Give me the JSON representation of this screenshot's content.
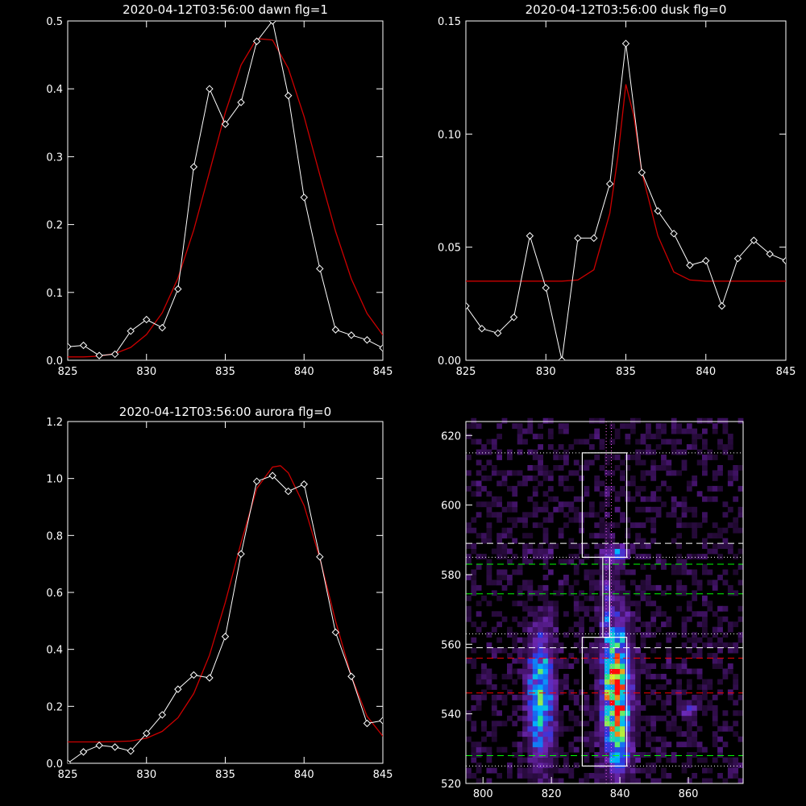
{
  "chart_data": [
    {
      "type": "line",
      "title": "2020-04-12T03:56:00 dawn flg=1",
      "xlim": [
        825,
        845
      ],
      "ylim": [
        0,
        0.5
      ],
      "xticks": [
        825,
        830,
        835,
        840,
        845
      ],
      "yticks": [
        0.0,
        0.1,
        0.2,
        0.3,
        0.4,
        0.5
      ],
      "ytick_labels": [
        "0.0",
        "0.1",
        "0.2",
        "0.3",
        "0.4",
        "0.5"
      ],
      "colors": {
        "data": "#ffffff",
        "fit": "#cc0000"
      },
      "data": {
        "x": [
          825,
          826,
          827,
          828,
          829,
          830,
          831,
          832,
          833,
          834,
          835,
          836,
          837,
          838,
          839,
          840,
          841,
          842,
          843,
          844,
          845
        ],
        "y": [
          0.02,
          0.022,
          0.007,
          0.009,
          0.043,
          0.06,
          0.048,
          0.105,
          0.285,
          0.4,
          0.348,
          0.38,
          0.47,
          0.5,
          0.39,
          0.24,
          0.135,
          0.045,
          0.037,
          0.03,
          0.018
        ]
      },
      "fit": {
        "x": [
          825,
          826,
          827,
          828,
          829,
          830,
          831,
          832,
          833,
          834,
          835,
          836,
          837,
          838,
          839,
          840,
          841,
          842,
          843,
          844,
          845
        ],
        "y": [
          0.005,
          0.005,
          0.006,
          0.01,
          0.019,
          0.038,
          0.07,
          0.121,
          0.192,
          0.278,
          0.365,
          0.435,
          0.474,
          0.472,
          0.43,
          0.359,
          0.273,
          0.19,
          0.12,
          0.069,
          0.037
        ]
      }
    },
    {
      "type": "line",
      "title": "2020-04-12T03:56:00 dusk flg=0",
      "xlim": [
        825,
        845
      ],
      "ylim": [
        0,
        0.15
      ],
      "xticks": [
        825,
        830,
        835,
        840,
        845
      ],
      "yticks": [
        0.0,
        0.05,
        0.1,
        0.15
      ],
      "ytick_labels": [
        "0.00",
        "0.05",
        "0.10",
        "0.15"
      ],
      "colors": {
        "data": "#ffffff",
        "fit": "#cc0000"
      },
      "data": {
        "x": [
          825,
          826,
          827,
          828,
          829,
          830,
          831,
          832,
          833,
          834,
          835,
          836,
          837,
          838,
          839,
          840,
          841,
          842,
          843,
          844,
          845
        ],
        "y": [
          0.024,
          0.014,
          0.012,
          0.019,
          0.055,
          0.032,
          0.0,
          0.054,
          0.054,
          0.078,
          0.14,
          0.083,
          0.066,
          0.056,
          0.042,
          0.044,
          0.024,
          0.045,
          0.053,
          0.047,
          0.044
        ]
      },
      "fit": {
        "x": [
          825,
          826,
          827,
          828,
          829,
          830,
          831,
          832,
          833,
          834,
          834.5,
          835,
          835.5,
          836,
          837,
          838,
          839,
          840,
          841,
          842,
          843,
          844,
          845
        ],
        "y": [
          0.035,
          0.035,
          0.035,
          0.035,
          0.035,
          0.035,
          0.035,
          0.0355,
          0.04,
          0.065,
          0.09,
          0.122,
          0.108,
          0.083,
          0.055,
          0.039,
          0.0355,
          0.035,
          0.035,
          0.035,
          0.035,
          0.035,
          0.035
        ]
      }
    },
    {
      "type": "line",
      "title": "2020-04-12T03:56:00 aurora flg=0",
      "xlim": [
        825,
        845
      ],
      "ylim": [
        0,
        1.2
      ],
      "xticks": [
        825,
        830,
        835,
        840,
        845
      ],
      "yticks": [
        0.0,
        0.2,
        0.4,
        0.6,
        0.8,
        1.0,
        1.2
      ],
      "ytick_labels": [
        "0.0",
        "0.2",
        "0.4",
        "0.6",
        "0.8",
        "1.0",
        "1.2"
      ],
      "colors": {
        "data": "#ffffff",
        "fit": "#cc0000"
      },
      "data": {
        "x": [
          825,
          826,
          827,
          828,
          829,
          830,
          831,
          832,
          833,
          834,
          835,
          836,
          837,
          838,
          839,
          840,
          841,
          842,
          843,
          844,
          845
        ],
        "y": [
          0.0,
          0.04,
          0.063,
          0.057,
          0.043,
          0.105,
          0.17,
          0.26,
          0.31,
          0.3,
          0.445,
          0.735,
          0.99,
          1.01,
          0.955,
          0.98,
          0.725,
          0.46,
          0.305,
          0.14,
          0.15
        ]
      },
      "fit": {
        "x": [
          825,
          826,
          827,
          828,
          829,
          830,
          831,
          832,
          833,
          834,
          835,
          836,
          837,
          838,
          838.5,
          839,
          840,
          841,
          842,
          843,
          844,
          845
        ],
        "y": [
          0.075,
          0.075,
          0.075,
          0.076,
          0.078,
          0.088,
          0.112,
          0.16,
          0.245,
          0.38,
          0.565,
          0.775,
          0.965,
          1.04,
          1.045,
          1.02,
          0.905,
          0.72,
          0.5,
          0.305,
          0.165,
          0.095
        ]
      }
    },
    {
      "type": "heatmap",
      "xlim": [
        795,
        876
      ],
      "ylim": [
        520,
        624
      ],
      "xticks": [
        800,
        820,
        840,
        860
      ],
      "yticks": [
        520,
        540,
        560,
        580,
        600,
        620
      ],
      "colors": {
        "low": "#2a0a3a",
        "mid": "#00c8ff",
        "high": "#ff0000",
        "box": "#ffffff",
        "ref_white": "#ffffff",
        "ref_green": "#00ff00",
        "ref_red": "#ff0000"
      },
      "blobs": [
        {
          "x": 817,
          "y": 545,
          "sx": 2.6,
          "sy": 13,
          "amp": 0.55
        },
        {
          "x": 839,
          "y": 545,
          "sx": 2.8,
          "sy": 14,
          "amp": 0.9
        },
        {
          "x": 839,
          "y": 586,
          "sx": 2,
          "sy": 1.5,
          "amp": 0.45
        },
        {
          "x": 817,
          "y": 586,
          "sx": 2,
          "sy": 1.2,
          "amp": 0.2
        },
        {
          "x": 860,
          "y": 541,
          "sx": 1.5,
          "sy": 1.5,
          "amp": 0.35
        },
        {
          "x": 836,
          "y": 575,
          "sx": 1.5,
          "sy": 10,
          "amp": 0.15
        }
      ],
      "boxes": [
        {
          "x0": 829,
          "x1": 842,
          "y0": 585,
          "y1": 615
        },
        {
          "x0": 835,
          "x1": 837,
          "y0": 562,
          "y1": 585
        },
        {
          "x0": 829,
          "x1": 842,
          "y0": 525,
          "y1": 562
        }
      ],
      "ref_lines": [
        {
          "y": 615,
          "style": "dotted",
          "color": "ref_white"
        },
        {
          "y": 589,
          "style": "dashed",
          "color": "ref_white"
        },
        {
          "y": 585,
          "style": "dotted",
          "color": "ref_white"
        },
        {
          "y": 583,
          "style": "dashed",
          "color": "ref_green"
        },
        {
          "y": 574.5,
          "style": "dashed",
          "color": "ref_green"
        },
        {
          "y": 563,
          "style": "dotted",
          "color": "ref_white"
        },
        {
          "y": 559,
          "style": "dashed",
          "color": "ref_white"
        },
        {
          "y": 556,
          "style": "dashed",
          "color": "ref_red"
        },
        {
          "y": 546,
          "style": "dashed",
          "color": "ref_red"
        },
        {
          "y": 528,
          "style": "dashed",
          "color": "ref_green"
        },
        {
          "y": 525,
          "style": "dotted",
          "color": "ref_white"
        }
      ],
      "vref_lines": [
        {
          "x": 836
        },
        {
          "x": 837.5
        }
      ]
    }
  ]
}
